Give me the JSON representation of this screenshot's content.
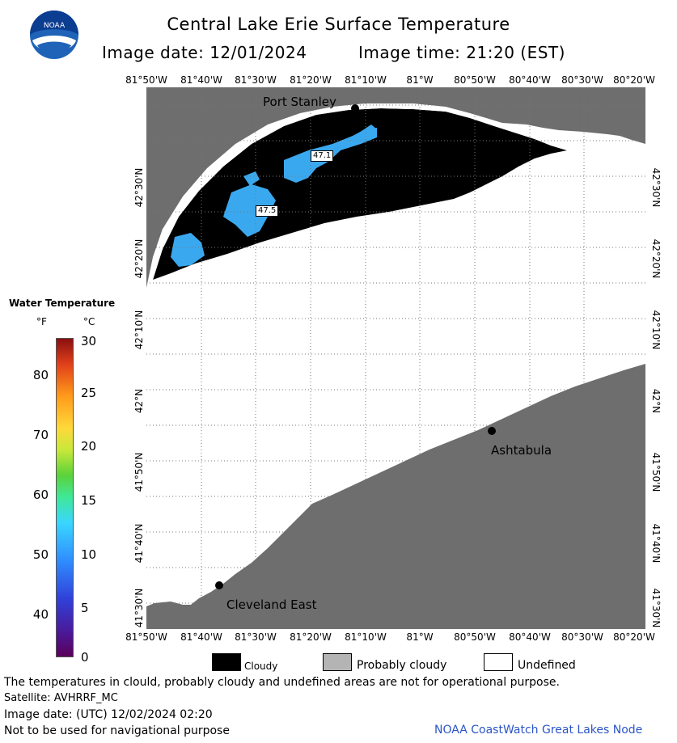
{
  "header": {
    "logo_text": "NOAA",
    "title": "Central Lake Erie Surface Temperature",
    "image_date_label": "Image date: 12/01/2024",
    "image_time_label": "Image time: 21:20 (EST)"
  },
  "axes": {
    "longitudes": [
      "81°50'W",
      "81°40'W",
      "81°30'W",
      "81°20'W",
      "81°10'W",
      "81°W",
      "80°50'W",
      "80°40'W",
      "80°30'W",
      "80°20'W"
    ],
    "latitudes": [
      "42°30'N",
      "42°20'N",
      "42°10'N",
      "42°N",
      "41°50'N",
      "41°40'N",
      "41°30'N"
    ]
  },
  "places": [
    {
      "name": "Port Stanley"
    },
    {
      "name": "Ashtabula"
    },
    {
      "name": "Cleveland East"
    }
  ],
  "temp_labels": [
    "47.1",
    "47.5"
  ],
  "legend": {
    "title": "Water Temperature",
    "unit_f": "°F",
    "unit_c": "°C",
    "f_ticks": [
      "80",
      "70",
      "60",
      "50",
      "40"
    ],
    "c_ticks": [
      "30",
      "25",
      "20",
      "15",
      "10",
      "5",
      "0"
    ],
    "categories": [
      {
        "label": "Cloudy",
        "color": "#000000"
      },
      {
        "label": "Probably cloudy",
        "color": "#b4b4b4"
      },
      {
        "label": "Undefined",
        "color": "#ffffff"
      }
    ]
  },
  "colors": {
    "land": "#6e6e6e",
    "cloud": "#000000",
    "water_warm": "#3aa8ef",
    "undefined": "#ffffff",
    "credit": "#2a55c8"
  },
  "footer": {
    "disclaimer": "The temperatures in clould, probably cloudy and undefined areas are not for operational purpose.",
    "satellite": "Satellite: AVHRRF_MC",
    "utc_date": "Image date: (UTC) 12/02/2024  02:20",
    "navigation": "Not to be used for navigational purpose",
    "credit": "NOAA CoastWatch Great Lakes Node"
  }
}
